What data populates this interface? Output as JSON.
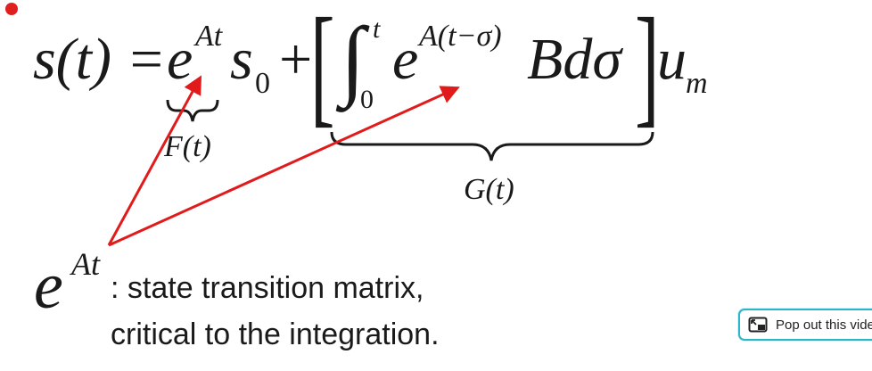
{
  "equation": {
    "lhs": "s(t) =",
    "exp_base_1": "e",
    "exp_power_1": "At",
    "s_term": "s",
    "s_sub": "0",
    "plus": "+",
    "bracket_left": "[",
    "integral": "∫",
    "int_upper": "t",
    "int_lower": "0",
    "exp_base_2": "e",
    "exp_power_2": "A(t−σ)",
    "b_dsigma": "Bdσ",
    "bracket_right": "]",
    "u_term": "u",
    "u_sub": "m"
  },
  "labels": {
    "f_label": "F(t)",
    "g_label": "G(t)"
  },
  "note": {
    "exp_base": "e",
    "exp_power": "At",
    "line1": ": state transition matrix,",
    "line2": "critical to the integration."
  },
  "popout": {
    "label": "Pop out this video",
    "icon": "popout-icon"
  },
  "colors": {
    "arrow": "#e11b1b",
    "record_dot": "#e02020",
    "popout_border": "#29b6c8"
  }
}
